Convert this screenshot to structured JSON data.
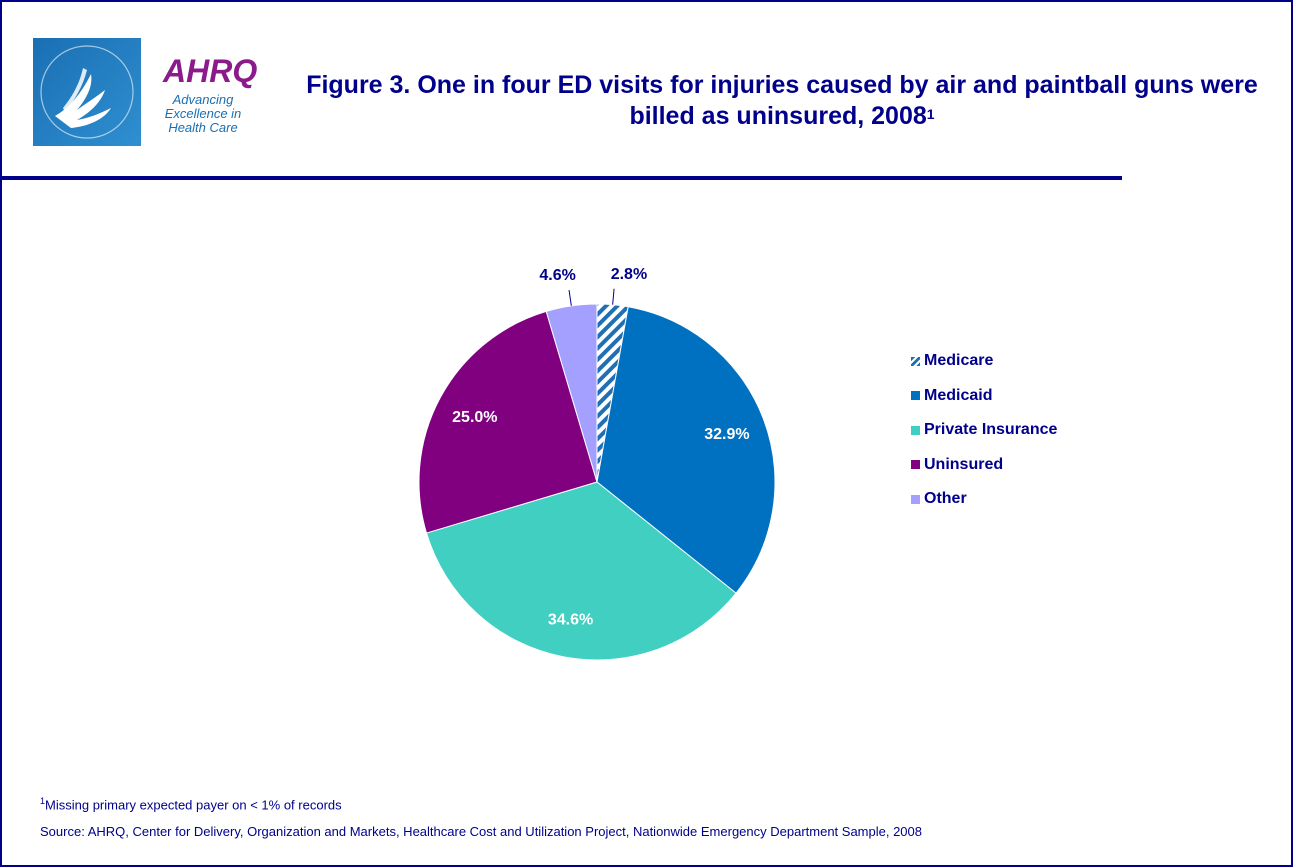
{
  "header": {
    "title": "Figure 3. One in four ED visits for injuries caused by air and paintball guns were billed as uninsured, 2008",
    "title_superscript": "1",
    "logo": {
      "icon": "hhs-eagle-icon",
      "brand_text": "AHRQ",
      "tagline": "Advancing Excellence in Health Care"
    }
  },
  "chart_data": {
    "type": "pie",
    "title": "",
    "slices": [
      {
        "label": "Medicare",
        "value": 2.8,
        "data_label": "2.8%",
        "color": "#1f6fb5",
        "pattern": "diagonal-stripes"
      },
      {
        "label": "Medicaid",
        "value": 32.9,
        "data_label": "32.9%",
        "color": "#0070c0"
      },
      {
        "label": "Private Insurance",
        "value": 34.6,
        "data_label": "34.6%",
        "color": "#40cfc0"
      },
      {
        "label": "Uninsured",
        "value": 25.0,
        "data_label": "25.0%",
        "color": "#800080"
      },
      {
        "label": "Other",
        "value": 4.6,
        "data_label": "4.6%",
        "color": "#a3a0ff"
      }
    ],
    "legend": {
      "placement": "right"
    }
  },
  "footer": {
    "footnote_marker": "1",
    "footnote": "Missing primary expected payer on < 1% of records",
    "source": "Source: AHRQ, Center for Delivery, Organization and Markets, Healthcare Cost and Utilization Project, Nationwide Emergency Department Sample, 2008"
  },
  "colors": {
    "frame": "#00008b",
    "text": "#00008b"
  }
}
